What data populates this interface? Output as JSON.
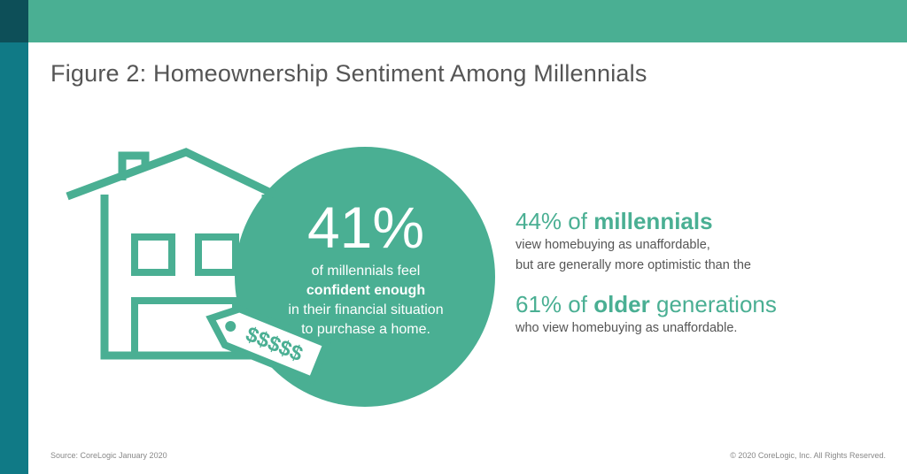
{
  "title": "Figure 2: Homeownership Sentiment Among Millennials",
  "colors": {
    "accent_green": "#4aaf93",
    "side_teal": "#107a86",
    "corner_dark": "#0d4f58",
    "text_gray": "#555555"
  },
  "illustration": {
    "house_icon": "house-outline-icon",
    "price_tag_text": "$$$$$"
  },
  "circle_stat": {
    "percent": "41%",
    "line1": "of millennials feel",
    "line2": "confident enough",
    "line3": "in their financial situation",
    "line4": "to purchase a home."
  },
  "stat1": {
    "pct": "44% of",
    "group": "millennials",
    "desc1": "view homebuying as unaffordable,",
    "desc2": "but are generally more optimistic than the"
  },
  "stat2": {
    "pct": "61% of",
    "group": "older",
    "tail": "generations",
    "desc": "who view homebuying as unaffordable."
  },
  "footer": {
    "source": "Source: CoreLogic January 2020",
    "copyright": "© 2020 CoreLogic, Inc. All Rights Reserved."
  }
}
